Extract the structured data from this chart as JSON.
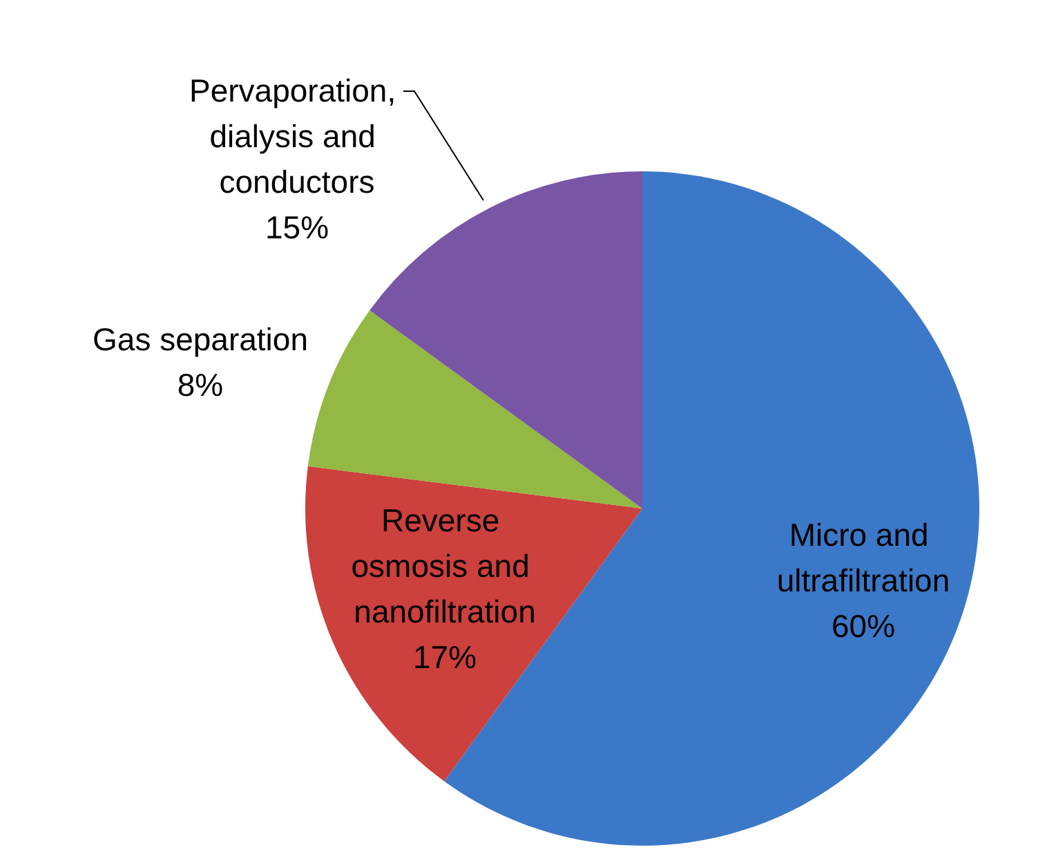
{
  "chart_data": {
    "type": "pie",
    "categories": [
      "Micro and ultrafiltration",
      "Reverse osmosis and nanofiltration",
      "Gas separation",
      "Pervaporation, dialysis and conductors"
    ],
    "values": [
      60,
      17,
      8,
      15
    ],
    "colors": [
      "#3c78c8",
      "#cc403d",
      "#93b843",
      "#7855a5"
    ],
    "value_labels": [
      "60%",
      "17%",
      "8%",
      "15%"
    ]
  }
}
